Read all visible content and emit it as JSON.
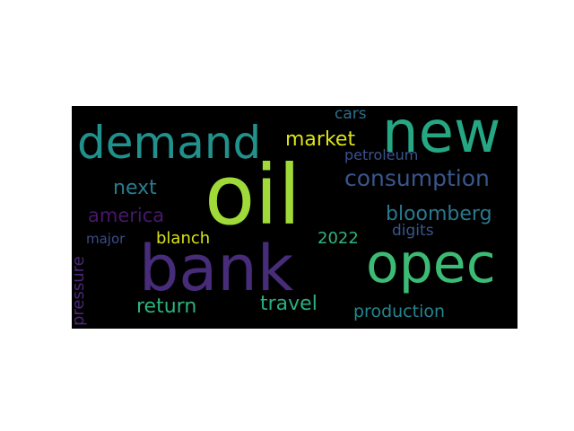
{
  "word_cloud": {
    "background": "#000000",
    "words": [
      {
        "text": "oil",
        "color": "#a0da39"
      },
      {
        "text": "bank",
        "color": "#472c7a"
      },
      {
        "text": "new",
        "color": "#26a784"
      },
      {
        "text": "opec",
        "color": "#3cbb75"
      },
      {
        "text": "demand",
        "color": "#21918c"
      },
      {
        "text": "consumption",
        "color": "#39568c"
      },
      {
        "text": "market",
        "color": "#dde318"
      },
      {
        "text": "next",
        "color": "#287d8e"
      },
      {
        "text": "america",
        "color": "#48186a"
      },
      {
        "text": "bloomberg",
        "color": "#2a788e"
      },
      {
        "text": "blanch",
        "color": "#d8e219"
      },
      {
        "text": "2022",
        "color": "#2fb47c"
      },
      {
        "text": "digits",
        "color": "#39568c"
      },
      {
        "text": "major",
        "color": "#3e4a89"
      },
      {
        "text": "return",
        "color": "#2db27d"
      },
      {
        "text": "travel",
        "color": "#29af7f"
      },
      {
        "text": "production",
        "color": "#25858e"
      },
      {
        "text": "cars",
        "color": "#2d708e"
      },
      {
        "text": "petroleum",
        "color": "#3b528b"
      },
      {
        "text": "pressure",
        "color": "#482878"
      }
    ]
  }
}
